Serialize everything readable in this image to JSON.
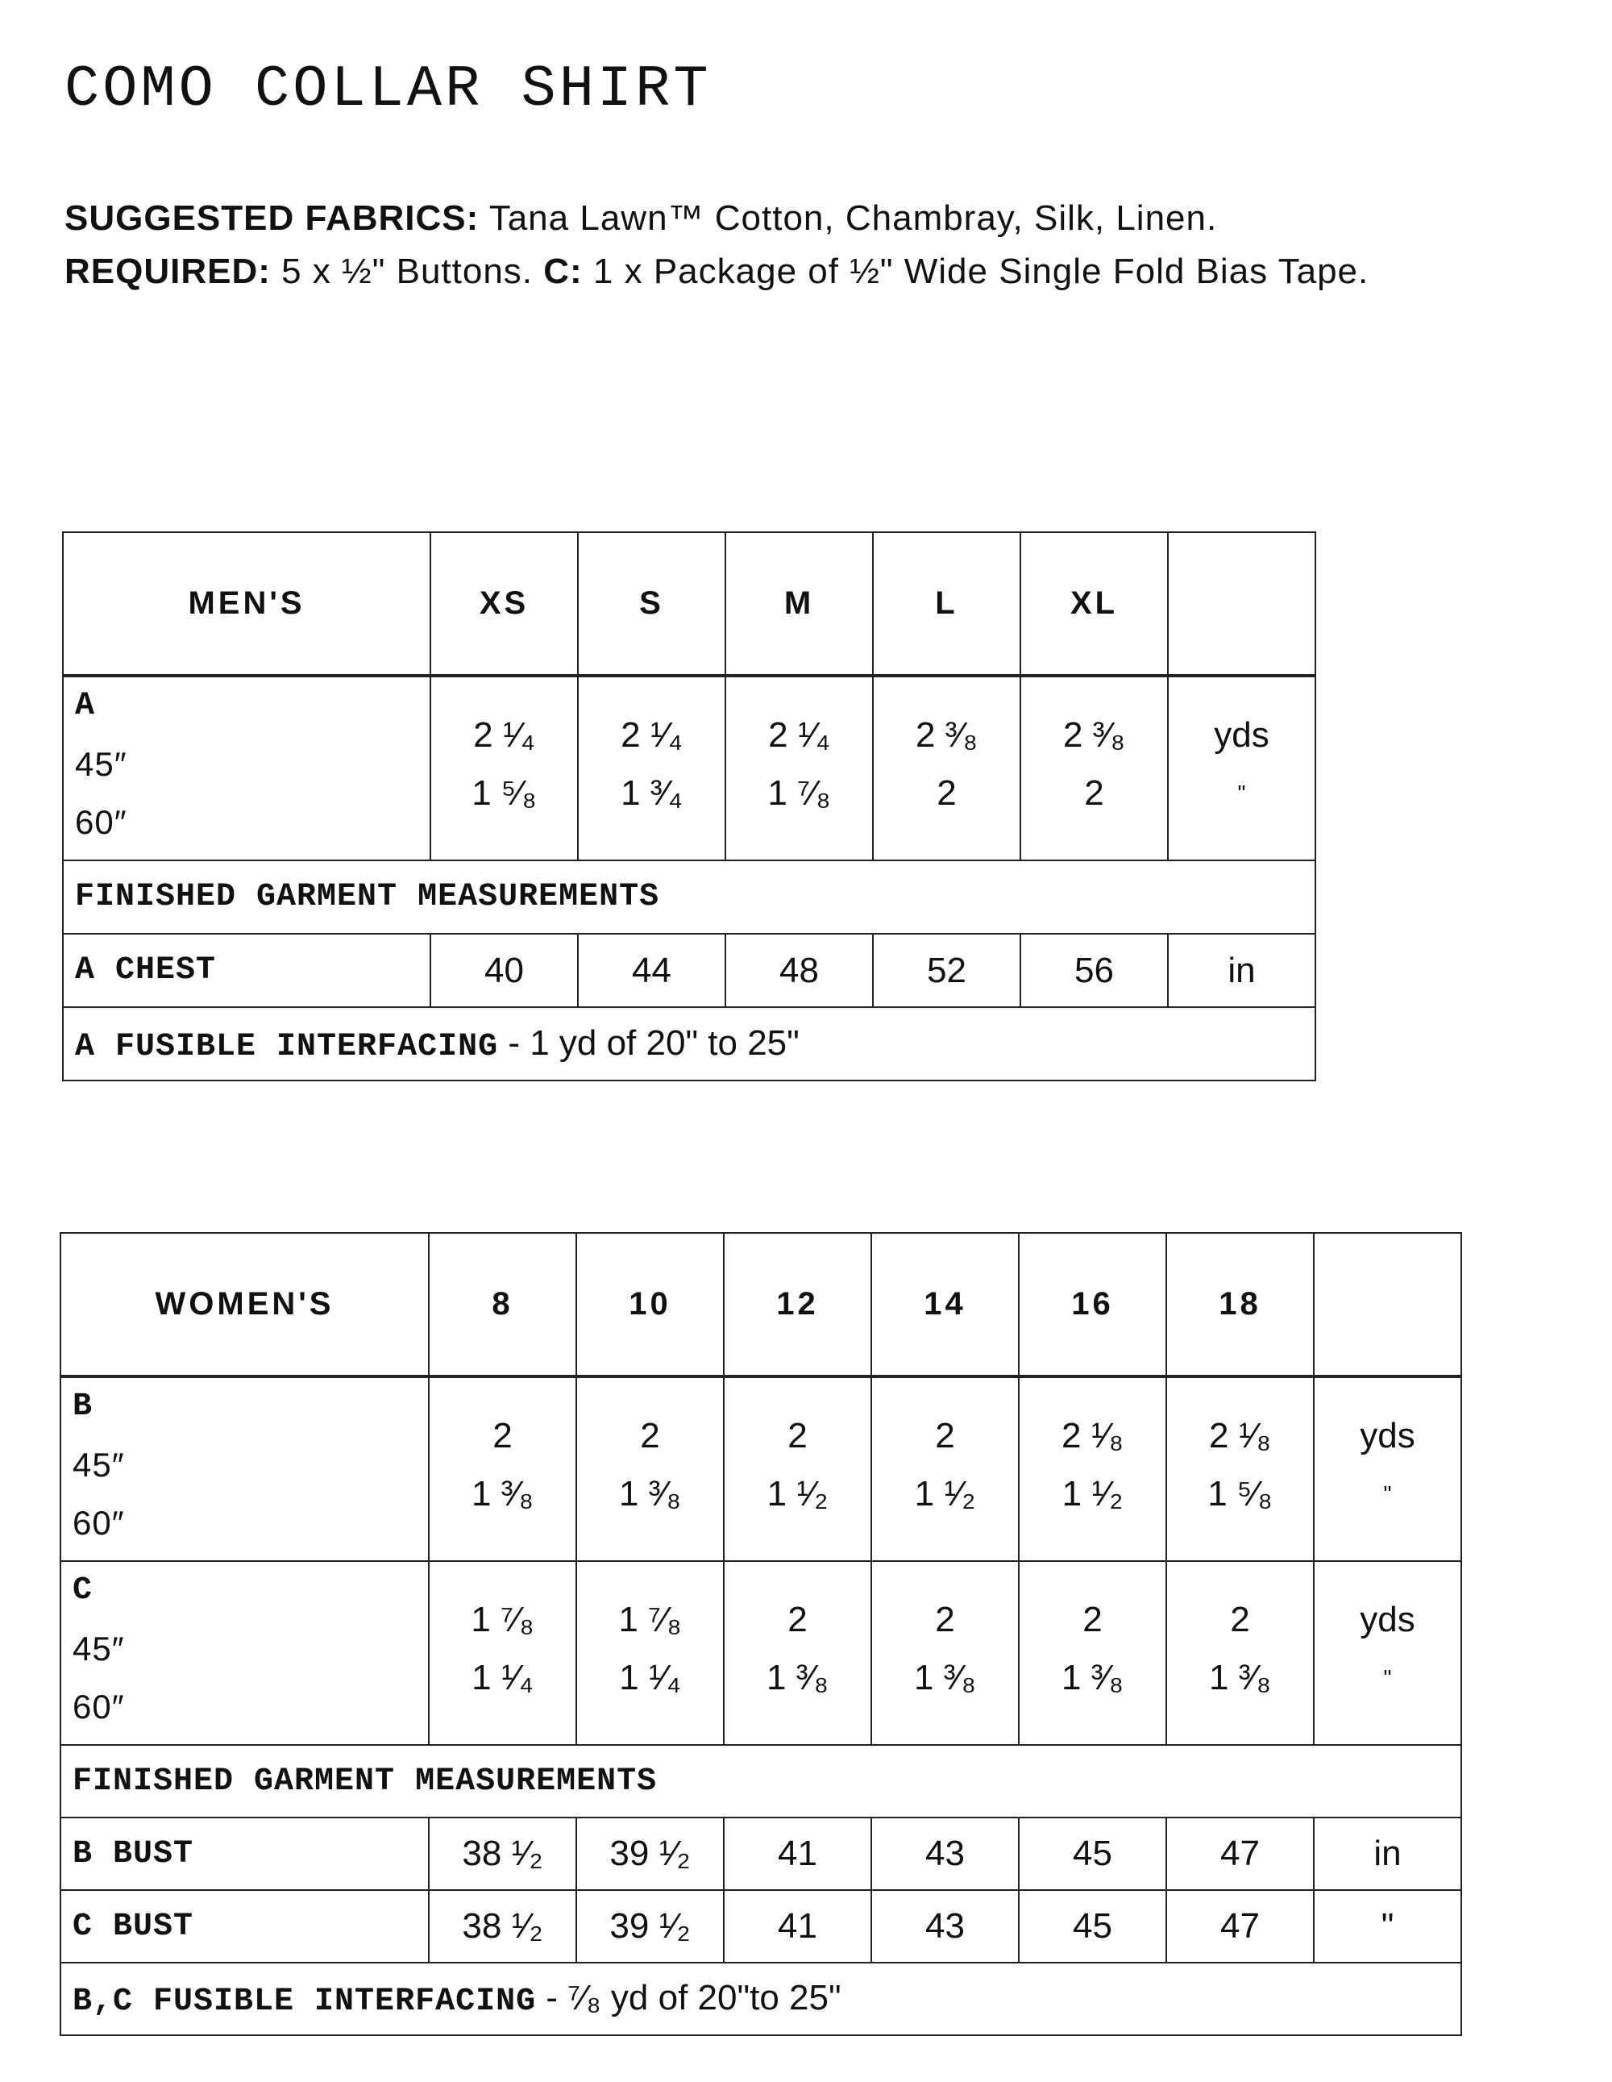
{
  "title": "COMO COLLAR SHIRT",
  "suggested": {
    "label": "SUGGESTED FABRICS:",
    "text": " Tana Lawn™ Cotton, Chambray, Silk, Linen."
  },
  "required": {
    "label": "REQUIRED:",
    "text": " 5 x ½\" Buttons. ",
    "c_label": "C:",
    "c_text": " 1 x Package of ½\" Wide Single Fold Bias Tape."
  },
  "mens": {
    "header": "MEN'S",
    "sizes": [
      "XS",
      "S",
      "M",
      "L",
      "XL"
    ],
    "fabric_rows": [
      {
        "view": "A",
        "widths": [
          "45″",
          "60″"
        ],
        "values": [
          [
            "2 ¹⁄₄",
            "1 ⁵⁄₈"
          ],
          [
            "2 ¹⁄₄",
            "1 ³⁄₄"
          ],
          [
            "2 ¹⁄₄",
            "1 ⁷⁄₈"
          ],
          [
            "2 ³⁄₈",
            "2"
          ],
          [
            "2 ³⁄₈",
            "2"
          ]
        ],
        "units": [
          "yds",
          "\""
        ]
      }
    ],
    "finished_label": "FINISHED GARMENT MEASUREMENTS",
    "measure_rows": [
      {
        "label": "A CHEST",
        "values": [
          "40",
          "44",
          "48",
          "52",
          "56"
        ],
        "unit": "in"
      }
    ],
    "interfacing": {
      "label": "A FUSIBLE INTERFACING",
      "text": " - 1 yd of 20\" to 25\""
    }
  },
  "womens": {
    "header": "WOMEN'S",
    "sizes": [
      "8",
      "10",
      "12",
      "14",
      "16",
      "18"
    ],
    "fabric_rows": [
      {
        "view": "B",
        "widths": [
          "45″",
          "60″"
        ],
        "values": [
          [
            "2",
            "1 ³⁄₈"
          ],
          [
            "2",
            "1 ³⁄₈"
          ],
          [
            "2",
            "1 ¹⁄₂"
          ],
          [
            "2",
            "1 ¹⁄₂"
          ],
          [
            "2 ¹⁄₈",
            "1 ¹⁄₂"
          ],
          [
            "2 ¹⁄₈",
            "1 ⁵⁄₈"
          ]
        ],
        "units": [
          "yds",
          "\""
        ]
      },
      {
        "view": "C",
        "widths": [
          "45″",
          "60″"
        ],
        "values": [
          [
            "1 ⁷⁄₈",
            "1 ¹⁄₄"
          ],
          [
            "1 ⁷⁄₈",
            "1 ¹⁄₄"
          ],
          [
            "2",
            "1 ³⁄₈"
          ],
          [
            "2",
            "1 ³⁄₈"
          ],
          [
            "2",
            "1 ³⁄₈"
          ],
          [
            "2",
            "1 ³⁄₈"
          ]
        ],
        "units": [
          "yds",
          "\""
        ]
      }
    ],
    "finished_label": "FINISHED GARMENT MEASUREMENTS",
    "measure_rows": [
      {
        "label": "B BUST",
        "values": [
          "38 ¹⁄₂",
          "39 ¹⁄₂",
          "41",
          "43",
          "45",
          "47"
        ],
        "unit": "in"
      },
      {
        "label": "C BUST",
        "values": [
          "38 ¹⁄₂",
          "39 ¹⁄₂",
          "41",
          "43",
          "45",
          "47"
        ],
        "unit": "\""
      }
    ],
    "interfacing": {
      "label": "B,C FUSIBLE INTERFACING",
      "text": " - ⁷⁄₈ yd of 20\"to 25\""
    }
  }
}
